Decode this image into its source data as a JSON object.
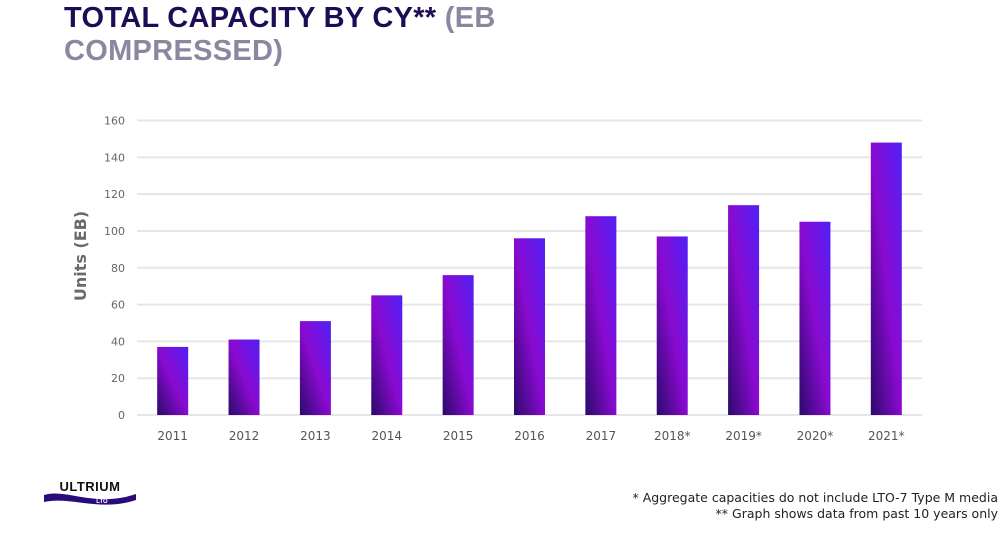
{
  "title": {
    "main": "TOTAL CAPACITY BY CY**",
    "sub_part1": " (EB",
    "sub_part2": "COMPRESSED)"
  },
  "colors": {
    "title": "#1e0d55",
    "subtitle": "#8a88a0",
    "bar_gradient": [
      "#2a0a6a",
      "#8a0ad0",
      "#5020f5"
    ],
    "grid": "#e6e6e6"
  },
  "logo": {
    "text": "ULTRIUM",
    "subtext": "LTO"
  },
  "footnotes": [
    "* Aggregate capacities do not include LTO-7 Type M media",
    "** Graph shows data from past 10 years only"
  ],
  "chart_data": {
    "type": "bar",
    "title": "TOTAL CAPACITY BY CY** (EB COMPRESSED)",
    "xlabel": "",
    "ylabel": "Units (EB)",
    "categories": [
      "2011",
      "2012",
      "2013",
      "2014",
      "2015",
      "2016",
      "2017",
      "2018*",
      "2019*",
      "2020*",
      "2021*"
    ],
    "values": [
      37,
      41,
      51,
      65,
      76,
      96,
      108,
      97,
      114,
      105,
      148
    ],
    "ylim": [
      0,
      160
    ],
    "yticks": [
      0,
      20,
      40,
      60,
      80,
      100,
      120,
      140,
      160
    ],
    "grid": true,
    "legend": "none"
  }
}
